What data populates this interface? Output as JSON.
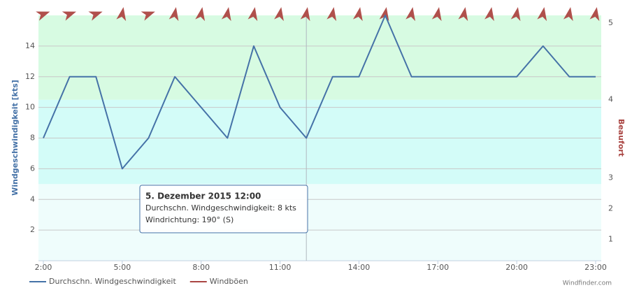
{
  "chart_data": {
    "type": "line",
    "y_axis_label": "Windgeschwindigkeit [kts]",
    "y2_axis_label": "Beaufort",
    "categories": [
      "2:00",
      null,
      null,
      "5:00",
      null,
      null,
      "8:00",
      null,
      null,
      "11:00",
      null,
      null,
      "14:00",
      null,
      null,
      "17:00",
      null,
      null,
      "20:00",
      null,
      null,
      "23:00"
    ],
    "series": [
      {
        "name": "Durchschn. Windgeschwindigkeit",
        "color": "#4572a7",
        "values": [
          8,
          12,
          12,
          6,
          8,
          12,
          10,
          8,
          14,
          10,
          8,
          12,
          12,
          16,
          12,
          12,
          12,
          12,
          12,
          14,
          12,
          12
        ]
      },
      {
        "name": "Windböen",
        "color": "#aa4643",
        "values": [
          null,
          null,
          null,
          null,
          null,
          null,
          null,
          null,
          null,
          null,
          null,
          null,
          null,
          null,
          null,
          null,
          null,
          null,
          null,
          null,
          null,
          null
        ]
      }
    ],
    "wind_direction": [
      250,
      250,
      250,
      190,
      250,
      190,
      190,
      190,
      190,
      190,
      190,
      190,
      190,
      190,
      190,
      190,
      190,
      190,
      190,
      190,
      190,
      190
    ],
    "arrow_color": "#b0504c",
    "ylim": [
      0,
      16
    ],
    "yticks": [
      2,
      4,
      6,
      8,
      10,
      12,
      14
    ],
    "grid": true,
    "beaufort_scale": [
      {
        "level": 1,
        "kts": 1.4
      },
      {
        "level": 2,
        "kts": 3.4
      },
      {
        "level": 3,
        "kts": 5.4
      },
      {
        "level": 4,
        "kts": 10.5
      },
      {
        "level": 5,
        "kts": 15.5
      }
    ],
    "bands": [
      {
        "from": 0,
        "to": 5,
        "color": "#effdfc"
      },
      {
        "from": 5,
        "to": 10.5,
        "color": "#d3fcf8"
      },
      {
        "from": 10.5,
        "to": 16,
        "color": "#d7fbe2"
      }
    ],
    "tooltip": {
      "index": 10,
      "lines": [
        "5. Dezember 2015 12:00",
        "Durchschn. Windgeschwindigkeit: 8 kts",
        "Windrichtung: 190° (S)"
      ]
    },
    "credit": "Windfinder.com"
  }
}
